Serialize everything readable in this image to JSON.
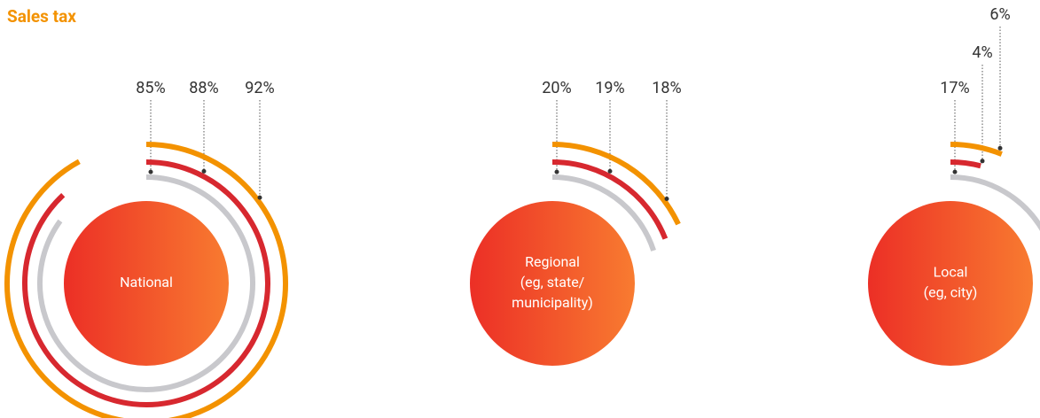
{
  "title": "Sales tax",
  "chart_data": [
    {
      "type": "radial_bar",
      "label_lines": [
        "National"
      ],
      "values": [
        85,
        88,
        92
      ],
      "value_labels": [
        "85%",
        "88%",
        "92%"
      ],
      "colors": [
        "#c8c8cc",
        "#d7282f",
        "#f39200"
      ],
      "vlim": [
        0,
        100
      ]
    },
    {
      "type": "radial_bar",
      "label_lines": [
        "Regional",
        "(eg, state/",
        "municipality)"
      ],
      "values": [
        20,
        19,
        18
      ],
      "value_labels": [
        "20%",
        "19%",
        "18%"
      ],
      "colors": [
        "#c8c8cc",
        "#d7282f",
        "#f39200"
      ],
      "vlim": [
        0,
        100
      ]
    },
    {
      "type": "radial_bar",
      "label_lines": [
        "Local",
        "(eg, city)"
      ],
      "values": [
        17,
        4,
        6
      ],
      "value_labels": [
        "17%",
        "4%",
        "6%"
      ],
      "colors": [
        "#c8c8cc",
        "#d7282f",
        "#f39200"
      ],
      "vlim": [
        0,
        100
      ]
    }
  ]
}
